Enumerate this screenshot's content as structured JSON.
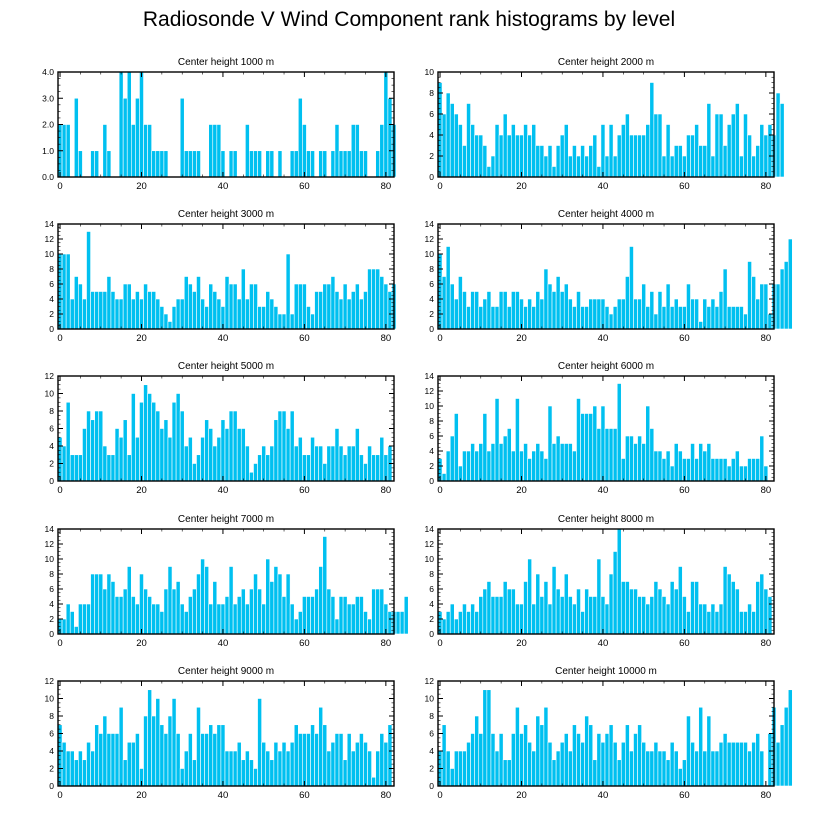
{
  "title": "Radiosonde V Wind Component rank histograms by level",
  "chart_data": [
    {
      "type": "bar",
      "title": "Center height 1000 m",
      "ylim": [
        0,
        4
      ],
      "yticks": [
        0,
        1,
        2,
        3,
        4
      ],
      "ytick_labels": [
        "0.0",
        "1.0",
        "2.0",
        "3.0",
        "4.0"
      ],
      "xlim": [
        -0.5,
        82
      ],
      "xticks": [
        0,
        20,
        40,
        60,
        80
      ],
      "xtick_labels": [
        "0",
        "20",
        "40",
        "60",
        "80"
      ],
      "values": [
        2,
        2,
        2,
        0,
        3,
        1,
        0,
        0,
        1,
        1,
        0,
        2,
        1,
        0,
        0,
        4,
        3,
        4,
        2,
        3,
        4,
        2,
        2,
        1,
        1,
        1,
        1,
        0,
        0,
        0,
        3,
        1,
        1,
        1,
        1,
        0,
        0,
        2,
        2,
        2,
        1,
        0,
        1,
        1,
        0,
        0,
        2,
        1,
        1,
        1,
        0,
        1,
        1,
        0,
        1,
        0,
        0,
        1,
        1,
        3,
        2,
        1,
        1,
        0,
        1,
        1,
        0,
        1,
        2,
        1,
        1,
        1,
        2,
        2,
        1,
        1,
        0,
        0,
        1,
        2,
        4,
        3,
        2
      ]
    },
    {
      "type": "bar",
      "title": "Center height 2000 m",
      "ylim": [
        0,
        10
      ],
      "yticks": [
        0,
        2,
        4,
        6,
        8,
        10
      ],
      "ytick_labels": [
        "0",
        "2",
        "4",
        "6",
        "8",
        "10"
      ],
      "xlim": [
        -0.5,
        82
      ],
      "xticks": [
        0,
        20,
        40,
        60,
        80
      ],
      "xtick_labels": [
        "0",
        "20",
        "40",
        "60",
        "80"
      ],
      "values": [
        9,
        6,
        8,
        7,
        6,
        5,
        3,
        7,
        5,
        4,
        4,
        3,
        1,
        2,
        5,
        4,
        6,
        4,
        5,
        4,
        4,
        5,
        4,
        5,
        3,
        3,
        2,
        3,
        1,
        3,
        4,
        5,
        2,
        3,
        2,
        3,
        2,
        3,
        4,
        1,
        5,
        2,
        5,
        2,
        4,
        5,
        6,
        4,
        4,
        4,
        4,
        5,
        9,
        6,
        6,
        2,
        5,
        2,
        3,
        3,
        2,
        4,
        4,
        5,
        3,
        3,
        7,
        2,
        6,
        6,
        3,
        5,
        6,
        7,
        2,
        6,
        4,
        2,
        3,
        5,
        4,
        5,
        4,
        8,
        7
      ]
    },
    {
      "type": "bar",
      "title": "Center height 3000 m",
      "ylim": [
        0,
        14
      ],
      "yticks": [
        0,
        2,
        4,
        6,
        8,
        10,
        12,
        14
      ],
      "ytick_labels": [
        "0",
        "2",
        "4",
        "6",
        "8",
        "10",
        "12",
        "14"
      ],
      "xlim": [
        -0.5,
        82
      ],
      "xticks": [
        0,
        20,
        40,
        60,
        80
      ],
      "xtick_labels": [
        "0",
        "20",
        "40",
        "60",
        "80"
      ],
      "values": [
        10,
        10,
        10,
        4,
        7,
        6,
        4,
        13,
        5,
        5,
        5,
        5,
        7,
        5,
        4,
        4,
        6,
        6,
        4,
        5,
        4,
        6,
        5,
        5,
        4,
        3,
        2,
        1,
        3,
        4,
        4,
        7,
        6,
        5,
        7,
        4,
        3,
        6,
        5,
        4,
        3,
        7,
        6,
        6,
        4,
        8,
        4,
        6,
        6,
        3,
        3,
        5,
        4,
        3,
        2,
        2,
        10,
        2,
        6,
        6,
        6,
        3,
        2,
        5,
        5,
        6,
        6,
        7,
        5,
        4,
        6,
        4,
        5,
        6,
        4,
        5,
        8,
        8,
        8,
        7,
        6,
        5,
        6
      ]
    },
    {
      "type": "bar",
      "title": "Center height 4000 m",
      "ylim": [
        0,
        14
      ],
      "yticks": [
        0,
        2,
        4,
        6,
        8,
        10,
        12,
        14
      ],
      "ytick_labels": [
        "0",
        "2",
        "4",
        "6",
        "8",
        "10",
        "12",
        "14"
      ],
      "xlim": [
        -0.5,
        82
      ],
      "xticks": [
        0,
        20,
        40,
        60,
        80
      ],
      "xtick_labels": [
        "0",
        "20",
        "40",
        "60",
        "80"
      ],
      "values": [
        10,
        7,
        11,
        6,
        4,
        7,
        5,
        3,
        5,
        5,
        3,
        4,
        5,
        3,
        3,
        5,
        5,
        3,
        5,
        5,
        4,
        3,
        4,
        3,
        5,
        4,
        8,
        6,
        5,
        7,
        5,
        6,
        4,
        3,
        5,
        3,
        3,
        4,
        4,
        4,
        4,
        3,
        2,
        3,
        4,
        4,
        7,
        11,
        4,
        4,
        6,
        3,
        5,
        2,
        5,
        3,
        6,
        3,
        4,
        3,
        3,
        6,
        4,
        4,
        1,
        4,
        3,
        4,
        3,
        5,
        8,
        3,
        3,
        3,
        3,
        2,
        9,
        7,
        4,
        6,
        6,
        2,
        6,
        6,
        8,
        9,
        12
      ]
    },
    {
      "type": "bar",
      "title": "Center height 5000 m",
      "ylim": [
        0,
        12
      ],
      "yticks": [
        0,
        2,
        4,
        6,
        8,
        10,
        12
      ],
      "ytick_labels": [
        "0",
        "2",
        "4",
        "6",
        "8",
        "10",
        "12"
      ],
      "xlim": [
        -0.5,
        82
      ],
      "xticks": [
        0,
        20,
        40,
        60,
        80
      ],
      "xtick_labels": [
        "0",
        "20",
        "40",
        "60",
        "80"
      ],
      "values": [
        5,
        4,
        9,
        3,
        3,
        3,
        6,
        8,
        7,
        8,
        8,
        4,
        3,
        3,
        6,
        5,
        7,
        3,
        10,
        5,
        9,
        11,
        10,
        9,
        8,
        6,
        7,
        5,
        9,
        10,
        8,
        4,
        5,
        2,
        3,
        5,
        7,
        6,
        4,
        5,
        7,
        6,
        8,
        8,
        6,
        6,
        4,
        1,
        2,
        3,
        4,
        3,
        4,
        7,
        8,
        8,
        6,
        8,
        4,
        5,
        3,
        3,
        5,
        4,
        4,
        2,
        4,
        4,
        6,
        4,
        3,
        4,
        4,
        6,
        3,
        2,
        4,
        3,
        3,
        5,
        3,
        4
      ]
    },
    {
      "type": "bar",
      "title": "Center height 6000 m",
      "ylim": [
        0,
        14
      ],
      "yticks": [
        0,
        2,
        4,
        6,
        8,
        10,
        12,
        14
      ],
      "ytick_labels": [
        "0",
        "2",
        "4",
        "6",
        "8",
        "10",
        "12",
        "14"
      ],
      "xlim": [
        -0.5,
        82
      ],
      "xticks": [
        0,
        20,
        40,
        60,
        80
      ],
      "xtick_labels": [
        "0",
        "20",
        "40",
        "60",
        "80"
      ],
      "values": [
        3,
        1,
        4,
        6,
        9,
        2,
        4,
        4,
        5,
        4,
        5,
        9,
        4,
        5,
        11,
        5,
        6,
        7,
        4,
        11,
        4,
        5,
        3,
        4,
        5,
        4,
        3,
        10,
        5,
        6,
        5,
        5,
        5,
        4,
        11,
        9,
        9,
        9,
        10,
        7,
        10,
        7,
        7,
        7,
        13,
        3,
        6,
        6,
        5,
        6,
        5,
        10,
        7,
        4,
        4,
        3,
        4,
        2,
        5,
        4,
        3,
        3,
        5,
        3,
        5,
        4,
        5,
        3,
        3,
        3,
        3,
        2,
        3,
        4,
        2,
        2,
        3,
        3,
        3,
        6,
        2
      ]
    },
    {
      "type": "bar",
      "title": "Center height 7000 m",
      "ylim": [
        0,
        14
      ],
      "yticks": [
        0,
        2,
        4,
        6,
        8,
        10,
        12,
        14
      ],
      "ytick_labels": [
        "0",
        "2",
        "4",
        "6",
        "8",
        "10",
        "12",
        "14"
      ],
      "xlim": [
        -0.5,
        82
      ],
      "xticks": [
        0,
        20,
        40,
        60,
        80
      ],
      "xtick_labels": [
        "0",
        "20",
        "40",
        "60",
        "80"
      ],
      "values": [
        2,
        2,
        4,
        3,
        1,
        4,
        4,
        4,
        8,
        8,
        8,
        6,
        8,
        7,
        5,
        5,
        6,
        9,
        5,
        4,
        8,
        6,
        5,
        4,
        4,
        3,
        6,
        9,
        6,
        7,
        4,
        3,
        5,
        6,
        8,
        10,
        9,
        4,
        7,
        4,
        4,
        5,
        9,
        4,
        5,
        6,
        4,
        6,
        8,
        6,
        4,
        10,
        7,
        9,
        8,
        5,
        8,
        4,
        2,
        3,
        5,
        5,
        5,
        6,
        9,
        13,
        6,
        5,
        2,
        5,
        5,
        4,
        4,
        5,
        5,
        3,
        2,
        6,
        6,
        6,
        4,
        3,
        3,
        3,
        3,
        5
      ]
    },
    {
      "type": "bar",
      "title": "Center height 8000 m",
      "ylim": [
        0,
        14
      ],
      "yticks": [
        0,
        2,
        4,
        6,
        8,
        10,
        12,
        14
      ],
      "ytick_labels": [
        "0",
        "2",
        "4",
        "6",
        "8",
        "10",
        "12",
        "14"
      ],
      "xlim": [
        -0.5,
        82
      ],
      "xticks": [
        0,
        20,
        40,
        60,
        80
      ],
      "xtick_labels": [
        "0",
        "20",
        "40",
        "60",
        "80"
      ],
      "values": [
        3,
        2,
        3,
        4,
        2,
        3,
        4,
        3,
        4,
        3,
        5,
        6,
        7,
        5,
        5,
        5,
        7,
        6,
        6,
        4,
        4,
        7,
        10,
        4,
        8,
        5,
        7,
        4,
        9,
        6,
        5,
        8,
        5,
        4,
        6,
        3,
        6,
        5,
        5,
        10,
        5,
        4,
        8,
        11,
        14,
        7,
        7,
        6,
        6,
        5,
        5,
        4,
        5,
        7,
        6,
        5,
        4,
        7,
        6,
        9,
        5,
        3,
        7,
        7,
        4,
        4,
        3,
        4,
        3,
        4,
        9,
        8,
        7,
        6,
        3,
        3,
        4,
        3,
        7,
        8,
        6,
        5
      ]
    },
    {
      "type": "bar",
      "title": "Center height 9000 m",
      "ylim": [
        0,
        12
      ],
      "yticks": [
        0,
        2,
        4,
        6,
        8,
        10,
        12
      ],
      "ytick_labels": [
        "0",
        "2",
        "4",
        "6",
        "8",
        "10",
        "12"
      ],
      "xlim": [
        -0.5,
        82
      ],
      "xticks": [
        0,
        20,
        40,
        60,
        80
      ],
      "xtick_labels": [
        "0",
        "20",
        "40",
        "60",
        "80"
      ],
      "values": [
        7,
        5,
        4,
        4,
        3,
        4,
        3,
        5,
        4,
        7,
        6,
        8,
        6,
        6,
        6,
        9,
        3,
        5,
        5,
        6,
        2,
        8,
        11,
        8,
        10,
        7,
        6,
        8,
        10,
        6,
        2,
        4,
        6,
        3,
        9,
        6,
        6,
        7,
        6,
        7,
        7,
        4,
        4,
        4,
        5,
        3,
        4,
        3,
        2,
        10,
        5,
        4,
        3,
        5,
        4,
        5,
        4,
        5,
        7,
        6,
        6,
        6,
        7,
        6,
        9,
        7,
        4,
        5,
        6,
        6,
        3,
        6,
        4,
        5,
        6,
        5,
        4,
        1,
        4,
        6,
        5,
        7
      ]
    },
    {
      "type": "bar",
      "title": "Center height 10000 m",
      "ylim": [
        0,
        12
      ],
      "yticks": [
        0,
        2,
        4,
        6,
        8,
        10,
        12
      ],
      "ytick_labels": [
        "0",
        "2",
        "4",
        "6",
        "8",
        "10",
        "12"
      ],
      "xlim": [
        -0.5,
        82
      ],
      "xticks": [
        0,
        20,
        40,
        60,
        80
      ],
      "xtick_labels": [
        "0",
        "20",
        "40",
        "60",
        "80"
      ],
      "values": [
        4,
        7,
        4,
        2,
        4,
        4,
        4,
        5,
        6,
        8,
        6,
        11,
        11,
        6,
        4,
        6,
        3,
        3,
        6,
        9,
        6,
        7,
        5,
        4,
        8,
        7,
        9,
        5,
        3,
        4,
        5,
        6,
        4,
        7,
        6,
        5,
        8,
        7,
        3,
        6,
        5,
        6,
        7,
        5,
        3,
        5,
        7,
        4,
        6,
        7,
        5,
        4,
        4,
        5,
        4,
        4,
        3,
        5,
        4,
        2,
        3,
        8,
        5,
        4,
        9,
        4,
        8,
        4,
        4,
        5,
        6,
        5,
        5,
        5,
        5,
        5,
        4,
        5,
        6,
        4,
        0,
        6,
        9,
        5,
        7,
        9,
        11
      ]
    }
  ]
}
